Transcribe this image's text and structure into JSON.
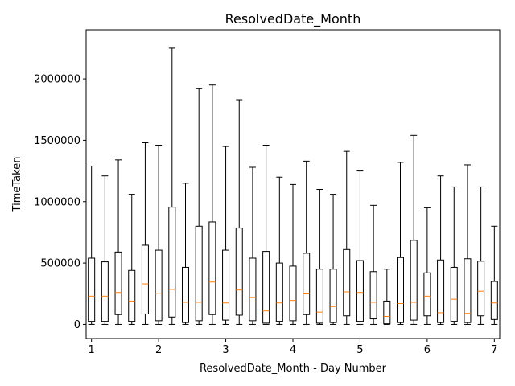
{
  "chart_data": {
    "type": "boxplot",
    "title": "ResolvedDate_Month",
    "xlabel": "ResolvedDate_Month - Day Number",
    "ylabel": "TimeTaken",
    "xlim": [
      0.92,
      7.08
    ],
    "ylim": [
      -115000,
      2400000
    ],
    "x_ticks": [
      1,
      2,
      3,
      4,
      5,
      6,
      7
    ],
    "y_ticks": [
      0,
      500000,
      1000000,
      1500000,
      2000000
    ],
    "grid": false,
    "colors": {
      "box": "#000000",
      "median": "#ff7f0e"
    },
    "boxes": [
      {
        "x": 1.0,
        "min": 0,
        "q1": 25000,
        "median": 230000,
        "q3": 540000,
        "max": 1290000
      },
      {
        "x": 1.2,
        "min": 0,
        "q1": 25000,
        "median": 230000,
        "q3": 510000,
        "max": 1210000
      },
      {
        "x": 1.4,
        "min": 0,
        "q1": 80000,
        "median": 260000,
        "q3": 590000,
        "max": 1340000
      },
      {
        "x": 1.6,
        "min": 0,
        "q1": 25000,
        "median": 190000,
        "q3": 440000,
        "max": 1060000
      },
      {
        "x": 1.8,
        "min": 0,
        "q1": 85000,
        "median": 330000,
        "q3": 645000,
        "max": 1480000
      },
      {
        "x": 2.0,
        "min": 0,
        "q1": 30000,
        "median": 250000,
        "q3": 605000,
        "max": 1460000
      },
      {
        "x": 2.2,
        "min": 0,
        "q1": 60000,
        "median": 285000,
        "q3": 955000,
        "max": 2250000
      },
      {
        "x": 2.4,
        "min": 0,
        "q1": 15000,
        "median": 180000,
        "q3": 465000,
        "max": 1150000
      },
      {
        "x": 2.6,
        "min": 0,
        "q1": 30000,
        "median": 180000,
        "q3": 800000,
        "max": 1920000
      },
      {
        "x": 2.8,
        "min": 0,
        "q1": 80000,
        "median": 345000,
        "q3": 835000,
        "max": 1950000
      },
      {
        "x": 3.0,
        "min": 0,
        "q1": 35000,
        "median": 175000,
        "q3": 605000,
        "max": 1450000
      },
      {
        "x": 3.2,
        "min": 0,
        "q1": 75000,
        "median": 280000,
        "q3": 785000,
        "max": 1830000
      },
      {
        "x": 3.4,
        "min": 0,
        "q1": 30000,
        "median": 220000,
        "q3": 540000,
        "max": 1280000
      },
      {
        "x": 3.6,
        "min": 0,
        "q1": 10000,
        "median": 110000,
        "q3": 595000,
        "max": 1460000
      },
      {
        "x": 3.8,
        "min": 0,
        "q1": 25000,
        "median": 175000,
        "q3": 500000,
        "max": 1200000
      },
      {
        "x": 4.0,
        "min": 0,
        "q1": 30000,
        "median": 195000,
        "q3": 475000,
        "max": 1140000
      },
      {
        "x": 4.2,
        "min": 0,
        "q1": 80000,
        "median": 255000,
        "q3": 580000,
        "max": 1330000
      },
      {
        "x": 4.4,
        "min": 0,
        "q1": 10000,
        "median": 100000,
        "q3": 450000,
        "max": 1100000
      },
      {
        "x": 4.6,
        "min": 0,
        "q1": 15000,
        "median": 145000,
        "q3": 450000,
        "max": 1060000
      },
      {
        "x": 4.8,
        "min": 0,
        "q1": 70000,
        "median": 265000,
        "q3": 610000,
        "max": 1410000
      },
      {
        "x": 5.0,
        "min": 0,
        "q1": 25000,
        "median": 260000,
        "q3": 520000,
        "max": 1250000
      },
      {
        "x": 5.2,
        "min": 0,
        "q1": 45000,
        "median": 180000,
        "q3": 430000,
        "max": 970000
      },
      {
        "x": 5.4,
        "min": 0,
        "q1": 5000,
        "median": 65000,
        "q3": 190000,
        "max": 450000
      },
      {
        "x": 5.6,
        "min": 0,
        "q1": 15000,
        "median": 170000,
        "q3": 545000,
        "max": 1320000
      },
      {
        "x": 5.8,
        "min": 0,
        "q1": 35000,
        "median": 180000,
        "q3": 685000,
        "max": 1540000
      },
      {
        "x": 6.0,
        "min": 0,
        "q1": 70000,
        "median": 230000,
        "q3": 420000,
        "max": 950000
      },
      {
        "x": 6.2,
        "min": 0,
        "q1": 15000,
        "median": 95000,
        "q3": 525000,
        "max": 1210000
      },
      {
        "x": 6.4,
        "min": 0,
        "q1": 25000,
        "median": 205000,
        "q3": 465000,
        "max": 1120000
      },
      {
        "x": 6.6,
        "min": 0,
        "q1": 15000,
        "median": 90000,
        "q3": 535000,
        "max": 1300000
      },
      {
        "x": 6.8,
        "min": 0,
        "q1": 70000,
        "median": 270000,
        "q3": 515000,
        "max": 1120000
      },
      {
        "x": 7.0,
        "min": 0,
        "q1": 40000,
        "median": 175000,
        "q3": 350000,
        "max": 800000
      }
    ]
  }
}
